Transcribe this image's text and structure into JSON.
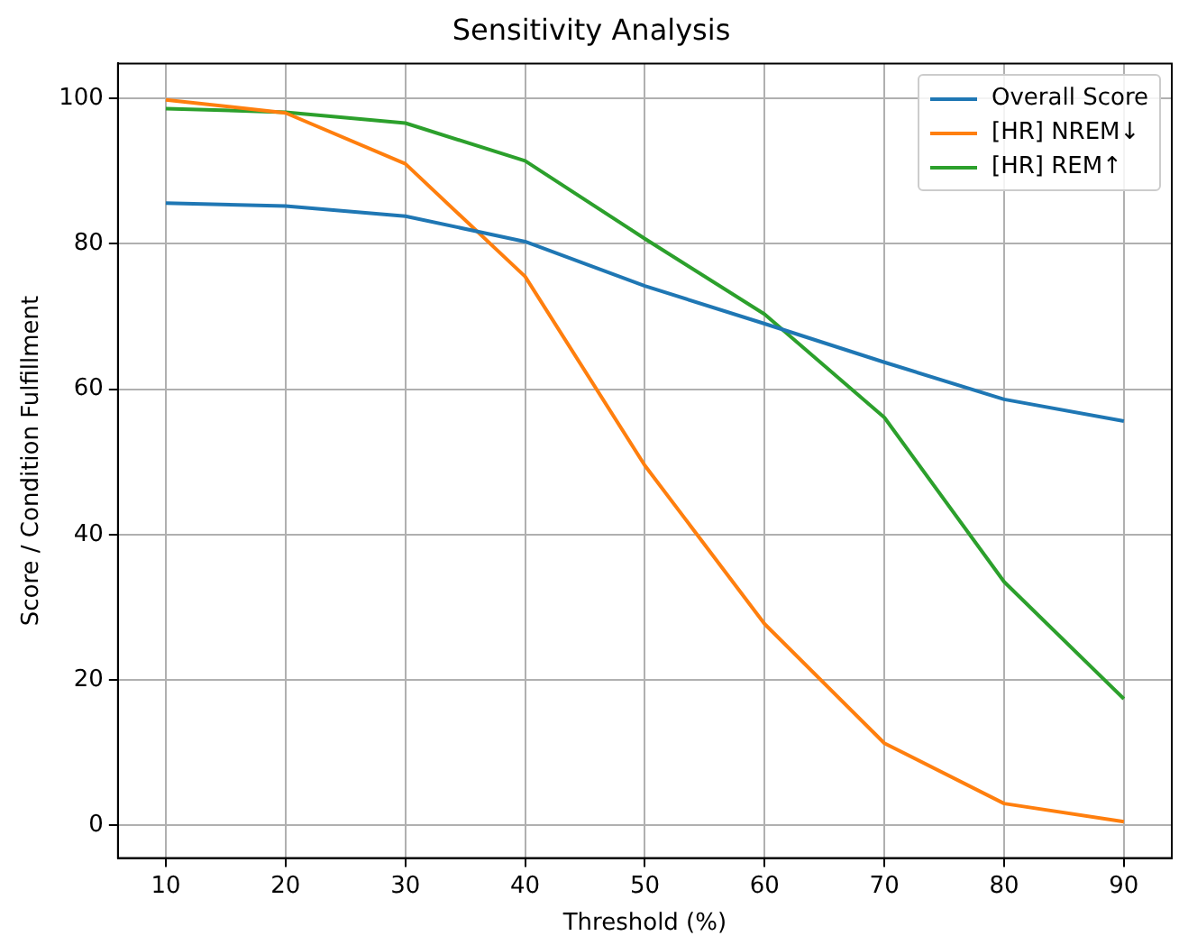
{
  "chart_data": {
    "type": "line",
    "title": "Sensitivity Analysis",
    "xlabel": "Threshold (%)",
    "ylabel": "Score / Condition Fulfillment",
    "x": [
      10,
      20,
      30,
      40,
      50,
      60,
      70,
      80,
      90
    ],
    "xlim": [
      6,
      94
    ],
    "xticks": [
      10,
      20,
      30,
      40,
      50,
      60,
      70,
      80,
      90
    ],
    "ylim": [
      -4.5,
      104.8
    ],
    "yticks": [
      0,
      20,
      40,
      60,
      80,
      100
    ],
    "grid": true,
    "legend": "top right",
    "marker": "none",
    "line_style": "solid",
    "series": [
      {
        "name": "Overall Score",
        "color": "#1f77b4",
        "values": [
          85.6,
          85.2,
          83.8,
          80.3,
          74.2,
          69,
          63.7,
          58.6,
          55.6
        ]
      },
      {
        "name": "[HR] NREM↓",
        "color": "#ff7f0e",
        "values": [
          99.8,
          98,
          91,
          75.5,
          49.5,
          27.7,
          11.3,
          3,
          0.5
        ]
      },
      {
        "name": "[HR] REM↑",
        "color": "#2ca02c",
        "values": [
          98.6,
          98.1,
          96.6,
          91.4,
          80.7,
          70.3,
          56.1,
          33.5,
          17.4
        ]
      }
    ]
  }
}
